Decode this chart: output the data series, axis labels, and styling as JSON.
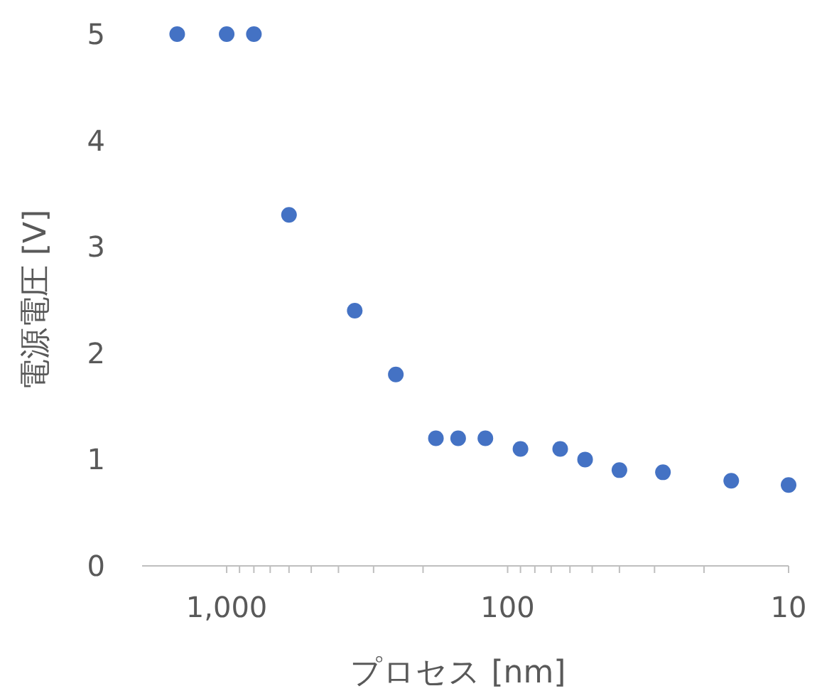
{
  "chart_data": {
    "type": "scatter",
    "xlabel": "プロセス [nm]",
    "ylabel": "電源電圧 [V]",
    "log": "x",
    "color": "#4472c4",
    "marker": "circle",
    "grid": false,
    "x": [
      1500,
      1000,
      800,
      600,
      350,
      250,
      180,
      150,
      120,
      90,
      65,
      53,
      40,
      28,
      16,
      10
    ],
    "values": [
      5,
      5,
      5,
      3.3,
      2.4,
      1.8,
      1.2,
      1.2,
      1.2,
      1.1,
      1.1,
      1.0,
      0.9,
      0.88,
      0.8,
      0.76
    ],
    "xlim": [
      2000,
      10
    ],
    "ylim": [
      0,
      5
    ],
    "xticks": [
      {
        "value": 1000,
        "label": "1,000"
      },
      {
        "value": 900,
        "label": null
      },
      {
        "value": 800,
        "label": null
      },
      {
        "value": 700,
        "label": null
      },
      {
        "value": 600,
        "label": null
      },
      {
        "value": 500,
        "label": null
      },
      {
        "value": 400,
        "label": null
      },
      {
        "value": 300,
        "label": null
      },
      {
        "value": 200,
        "label": null
      },
      100,
      {
        "value": 90,
        "label": null
      },
      {
        "value": 80,
        "label": null
      },
      {
        "value": 70,
        "label": null
      },
      {
        "value": 60,
        "label": null
      },
      {
        "value": 50,
        "label": null
      },
      {
        "value": 40,
        "label": null
      },
      {
        "value": 30,
        "label": null
      },
      {
        "value": 20,
        "label": null
      },
      10
    ],
    "yticks": [
      0,
      1,
      2,
      3,
      4,
      5
    ]
  }
}
